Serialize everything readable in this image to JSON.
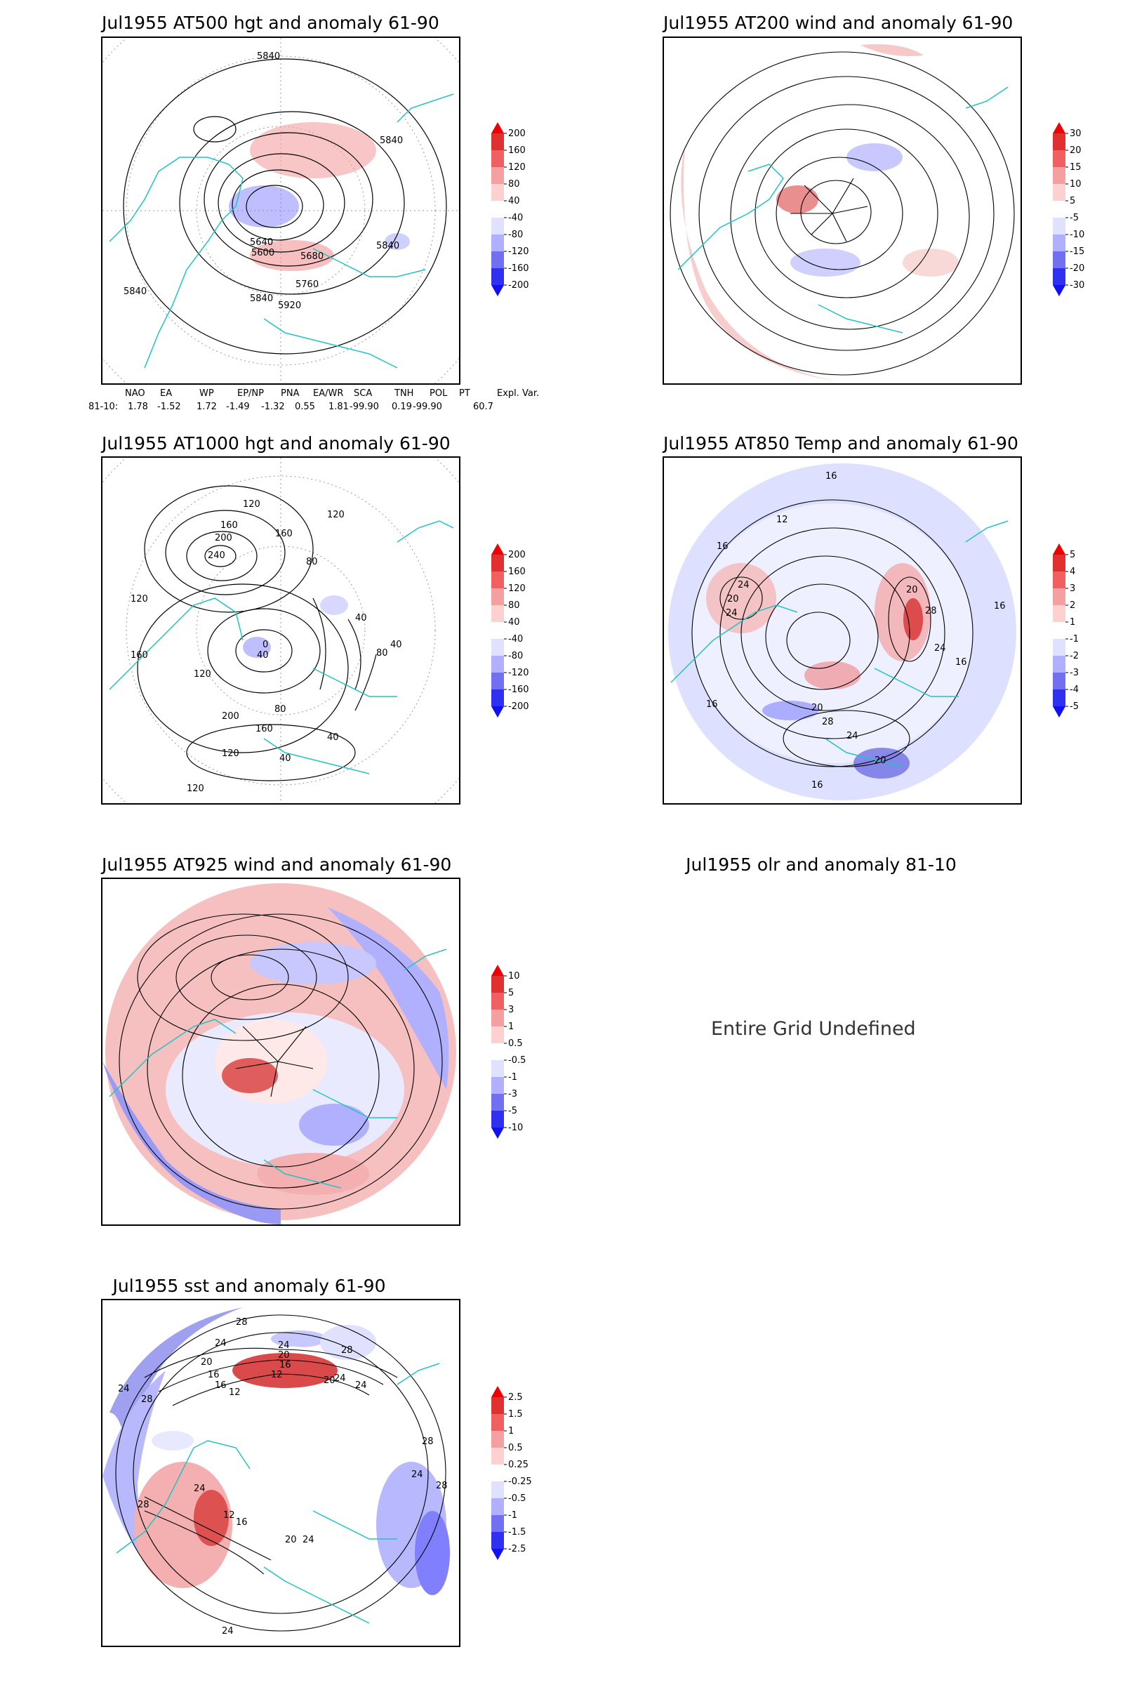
{
  "panels": [
    {
      "title": "Jul1955 AT500 hgt and anomaly 61-90",
      "contour_labels": [
        "5840",
        "5840",
        "5840",
        "5840",
        "5640",
        "5600",
        "5680",
        "5760",
        "5840",
        "5920"
      ],
      "colorbar": [
        "200",
        "160",
        "120",
        "80",
        "40",
        "-40",
        "-80",
        "-120",
        "-160",
        "-200"
      ]
    },
    {
      "title": "Jul1955 AT200 wind and anomaly 61-90",
      "contour_labels": [],
      "colorbar": [
        "30",
        "20",
        "15",
        "10",
        "5",
        "-5",
        "-10",
        "-15",
        "-20",
        "-30"
      ]
    },
    {
      "title": "Jul1955 AT1000 hgt and anomaly 61-90",
      "contour_labels": [
        "120",
        "160",
        "200",
        "240",
        "160",
        "120",
        "80",
        "120",
        "160",
        "40",
        "0",
        "120",
        "200",
        "160",
        "120",
        "80",
        "40",
        "40",
        "40",
        "40",
        "80",
        "120"
      ],
      "colorbar": [
        "200",
        "160",
        "120",
        "80",
        "40",
        "-40",
        "-80",
        "-120",
        "-160",
        "-200"
      ]
    },
    {
      "title": "Jul1955 AT850 Temp and anomaly 61-90",
      "contour_labels": [
        "16",
        "12",
        "16",
        "24",
        "20",
        "24",
        "20",
        "28",
        "24",
        "16",
        "16",
        "16",
        "20",
        "28",
        "24",
        "20",
        "16"
      ],
      "colorbar": [
        "5",
        "4",
        "3",
        "2",
        "1",
        "-1",
        "-2",
        "-3",
        "-4",
        "-5"
      ]
    },
    {
      "title": "Jul1955 AT925 wind and anomaly 61-90",
      "contour_labels": [],
      "colorbar": [
        "10",
        "5",
        "3",
        "1",
        "0.5",
        "-0.5",
        "-1",
        "-3",
        "-5",
        "-10"
      ]
    },
    {
      "title": "Jul1955 olr and anomaly 81-10",
      "message": "Entire Grid Undefined"
    },
    {
      "title": "Jul1955 sst and anomaly 61-90",
      "contour_labels": [
        "28",
        "24",
        "24",
        "20",
        "16",
        "24",
        "20",
        "16",
        "12",
        "28",
        "28",
        "24",
        "24",
        "20",
        "16",
        "12",
        "28",
        "28",
        "24",
        "24",
        "12",
        "16",
        "20",
        "24",
        "28",
        "24"
      ],
      "colorbar": [
        "2.5",
        "1.5",
        "1",
        "0.5",
        "0.25",
        "-0.25",
        "-0.5",
        "-1",
        "-1.5",
        "-2.5"
      ]
    }
  ],
  "indices": {
    "headers": [
      "NAO",
      "EA",
      "WP",
      "EP/NP",
      "PNA",
      "EA/WR",
      "SCA",
      "TNH",
      "POL",
      "PT",
      "Expl. Var."
    ],
    "row_label": "81-10:",
    "values": [
      "1.78",
      "-1.52",
      "1.72",
      "-1.49",
      "-1.32",
      "0.55",
      "1.81",
      "-99.90",
      "0.19",
      "-99.90",
      "60.7"
    ]
  },
  "colors": {
    "coast": "#22c3c3",
    "contour": "#000000",
    "grid": "#a0a0a0",
    "pos_scale": [
      "#ffd8d8",
      "#ffb0b0",
      "#f07070",
      "#e04040",
      "#f00000"
    ],
    "neg_scale": [
      "#e0e0ff",
      "#b8b8ff",
      "#8080ff",
      "#5050f0",
      "#1010f0"
    ]
  }
}
